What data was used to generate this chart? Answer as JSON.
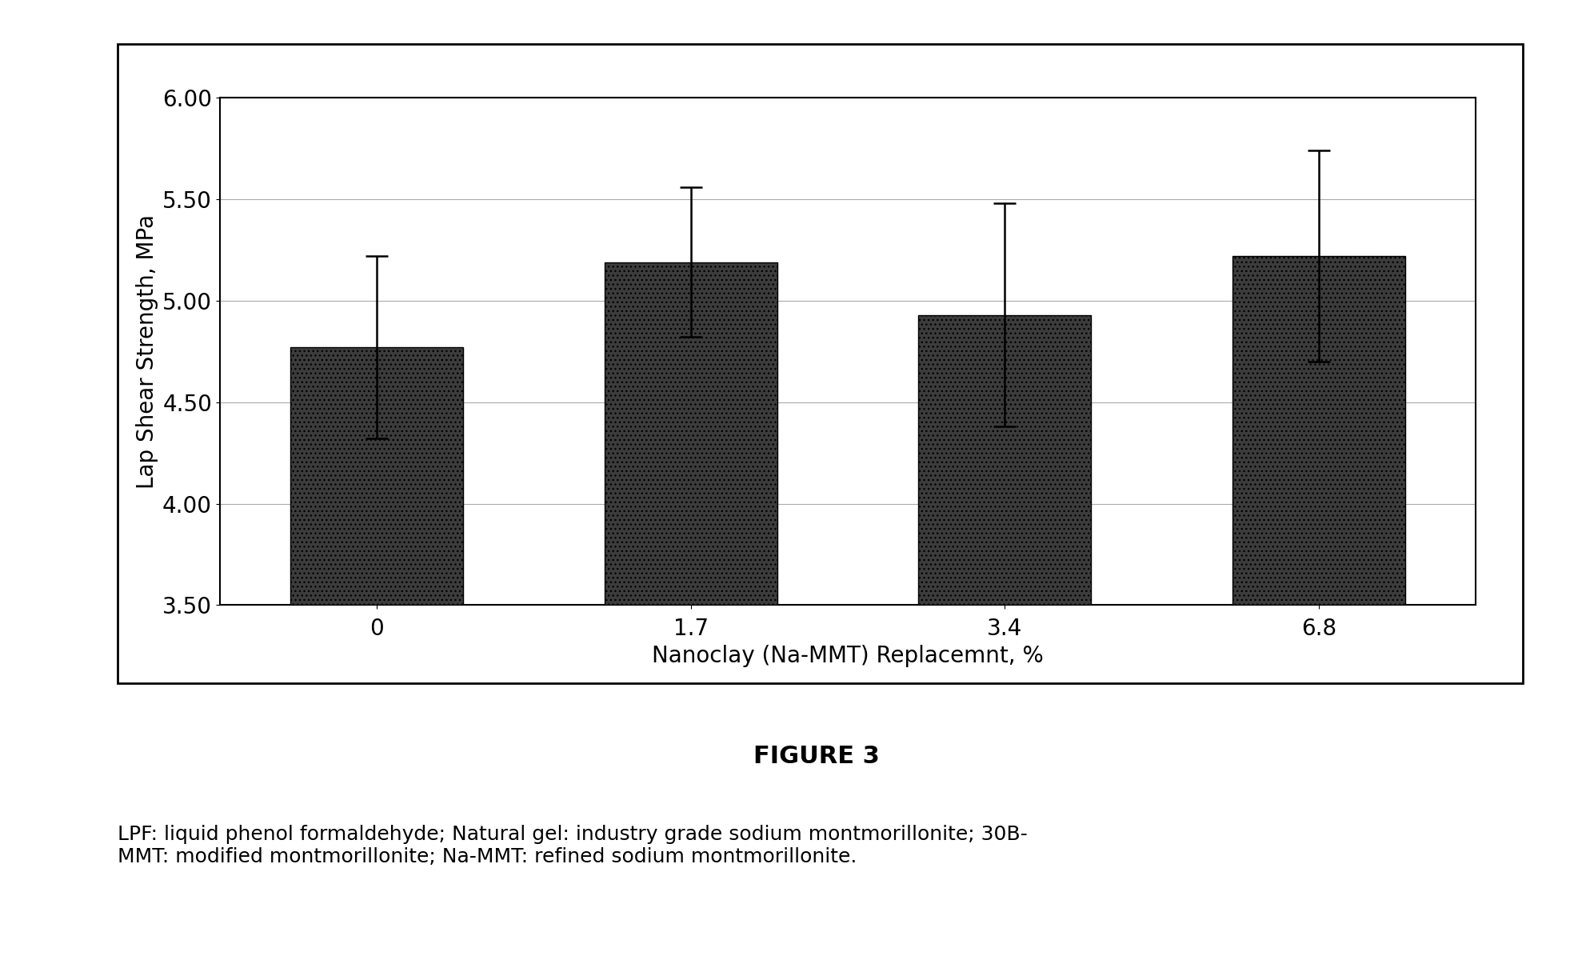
{
  "categories": [
    "0",
    "1.7",
    "3.4",
    "6.8"
  ],
  "x_positions": [
    0,
    1,
    2,
    3
  ],
  "x_tick_labels": [
    "0",
    "1.7",
    "3.4",
    "6.8"
  ],
  "values": [
    4.77,
    5.19,
    4.93,
    5.22
  ],
  "errors": [
    0.45,
    0.37,
    0.55,
    0.52
  ],
  "bar_color": "#3c3c3c",
  "bar_width": 0.55,
  "ylim": [
    3.5,
    6.0
  ],
  "yticks": [
    3.5,
    4.0,
    4.5,
    5.0,
    5.5,
    6.0
  ],
  "ylabel": "Lap Shear Strength, MPa",
  "xlabel": "Nanoclay (Na-MMT) Replacemnt, %",
  "figure_label": "FIGURE 3",
  "caption": "LPF: liquid phenol formaldehyde; Natural gel: industry grade sodium montmorillonite; 30B-\nMMT: modified montmorillonite; Na-MMT: refined sodium montmorillonite.",
  "background_color": "#ffffff",
  "grid_color": "#aaaaaa",
  "axis_linewidth": 1.5,
  "ylabel_fontsize": 20,
  "xlabel_fontsize": 20,
  "tick_fontsize": 20,
  "figure_label_fontsize": 22,
  "caption_fontsize": 18,
  "error_capsize": 10,
  "error_linewidth": 1.8
}
